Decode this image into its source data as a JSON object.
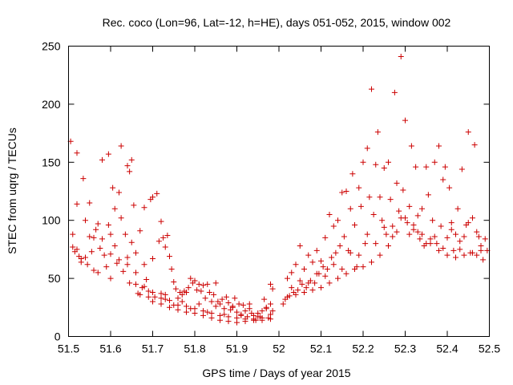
{
  "chart_data": {
    "type": "scatter",
    "title": "Rec. coco (Lon=96, Lat=-12, h=HE), days 051-052, 2015, window 002",
    "xlabel": "GPS time / Days of year 2015",
    "ylabel": "STEC from uqrg / TECUs",
    "xlim": [
      51.5,
      52.5
    ],
    "ylim": [
      0,
      250
    ],
    "xticks": [
      51.5,
      51.6,
      51.7,
      51.8,
      51.9,
      52,
      52.1,
      52.2,
      52.3,
      52.4,
      52.5
    ],
    "xtick_labels": [
      "51.5",
      "51.6",
      "51.7",
      "51.8",
      "51.9",
      "52",
      "52.1",
      "52.2",
      "52.3",
      "52.4",
      "52.5"
    ],
    "yticks": [
      0,
      50,
      100,
      150,
      200,
      250
    ],
    "ytick_labels": [
      "0",
      "50",
      "100",
      "150",
      "200",
      "250"
    ],
    "grid": false,
    "marker": "plus",
    "color": "#cc0000",
    "points": [
      [
        51.505,
        168
      ],
      [
        51.51,
        88
      ],
      [
        51.51,
        77
      ],
      [
        51.515,
        73
      ],
      [
        51.52,
        158
      ],
      [
        51.52,
        114
      ],
      [
        51.525,
        69
      ],
      [
        51.53,
        67
      ],
      [
        51.535,
        136
      ],
      [
        51.54,
        100
      ],
      [
        51.54,
        68
      ],
      [
        51.545,
        62
      ],
      [
        51.55,
        115
      ],
      [
        51.55,
        86
      ],
      [
        51.555,
        73
      ],
      [
        51.56,
        57
      ],
      [
        51.565,
        92
      ],
      [
        51.57,
        97
      ],
      [
        51.57,
        55
      ],
      [
        51.575,
        76
      ],
      [
        51.58,
        152
      ],
      [
        51.58,
        84
      ],
      [
        51.585,
        70
      ],
      [
        51.59,
        60
      ],
      [
        51.595,
        157
      ],
      [
        51.595,
        96
      ],
      [
        51.6,
        71
      ],
      [
        51.6,
        50
      ],
      [
        51.605,
        128
      ],
      [
        51.61,
        110
      ],
      [
        51.61,
        78
      ],
      [
        51.615,
        63
      ],
      [
        51.62,
        124
      ],
      [
        51.625,
        164
      ],
      [
        51.625,
        102
      ],
      [
        51.63,
        56
      ],
      [
        51.635,
        88
      ],
      [
        51.64,
        147
      ],
      [
        51.64,
        68
      ],
      [
        51.645,
        142
      ],
      [
        51.645,
        46
      ],
      [
        51.65,
        152
      ],
      [
        51.65,
        81
      ],
      [
        51.655,
        113
      ],
      [
        51.66,
        72
      ],
      [
        51.66,
        55
      ],
      [
        51.665,
        37
      ],
      [
        51.67,
        91
      ],
      [
        51.675,
        42
      ],
      [
        51.68,
        111
      ],
      [
        51.68,
        62
      ],
      [
        51.685,
        49
      ],
      [
        51.69,
        39
      ],
      [
        51.695,
        118
      ],
      [
        51.7,
        120
      ],
      [
        51.7,
        67
      ],
      [
        51.705,
        34
      ],
      [
        51.71,
        123
      ],
      [
        51.715,
        82
      ],
      [
        51.72,
        99
      ],
      [
        51.72,
        37
      ],
      [
        51.725,
        85
      ],
      [
        51.73,
        77
      ],
      [
        51.73,
        36
      ],
      [
        51.735,
        87
      ],
      [
        51.74,
        69
      ],
      [
        51.745,
        58
      ],
      [
        51.75,
        47
      ],
      [
        51.755,
        41
      ],
      [
        51.76,
        33
      ],
      [
        51.765,
        38
      ],
      [
        51.77,
        36
      ],
      [
        51.775,
        39
      ],
      [
        51.78,
        38
      ],
      [
        51.785,
        42
      ],
      [
        51.79,
        50
      ],
      [
        51.795,
        46
      ],
      [
        51.8,
        48
      ],
      [
        51.805,
        40
      ],
      [
        51.81,
        45
      ],
      [
        51.815,
        39
      ],
      [
        51.82,
        44
      ],
      [
        51.825,
        33
      ],
      [
        51.83,
        45
      ],
      [
        51.835,
        38
      ],
      [
        51.84,
        30
      ],
      [
        51.845,
        36
      ],
      [
        51.85,
        46
      ],
      [
        51.855,
        30
      ],
      [
        51.86,
        28
      ],
      [
        51.865,
        32
      ],
      [
        51.87,
        24
      ],
      [
        51.875,
        34
      ],
      [
        51.88,
        29
      ],
      [
        51.885,
        23
      ],
      [
        51.89,
        26
      ],
      [
        51.895,
        33
      ],
      [
        51.9,
        21
      ],
      [
        51.905,
        28
      ],
      [
        51.91,
        19
      ],
      [
        51.915,
        27
      ],
      [
        51.92,
        22
      ],
      [
        51.925,
        17
      ],
      [
        51.93,
        28
      ],
      [
        51.935,
        20
      ],
      [
        51.94,
        18
      ],
      [
        51.945,
        14
      ],
      [
        51.95,
        20
      ],
      [
        51.955,
        17
      ],
      [
        51.96,
        22
      ],
      [
        51.965,
        32
      ],
      [
        51.97,
        24
      ],
      [
        51.975,
        16
      ],
      [
        51.98,
        45
      ],
      [
        51.985,
        41
      ],
      [
        51.98,
        28
      ],
      [
        51.985,
        22
      ],
      [
        51.52,
        75
      ],
      [
        51.53,
        64
      ],
      [
        51.56,
        85
      ],
      [
        51.6,
        88
      ],
      [
        51.62,
        66
      ],
      [
        51.64,
        62
      ],
      [
        51.66,
        45
      ],
      [
        51.68,
        43
      ],
      [
        51.7,
        38
      ],
      [
        51.72,
        33
      ],
      [
        51.74,
        31
      ],
      [
        51.76,
        27
      ],
      [
        51.78,
        26
      ],
      [
        51.8,
        24
      ],
      [
        51.82,
        22
      ],
      [
        51.84,
        20
      ],
      [
        51.86,
        18
      ],
      [
        51.88,
        17
      ],
      [
        51.9,
        16
      ],
      [
        51.92,
        15
      ],
      [
        51.94,
        15
      ],
      [
        51.96,
        14
      ],
      [
        51.98,
        15
      ],
      [
        51.7,
        30
      ],
      [
        51.72,
        28
      ],
      [
        51.74,
        25
      ],
      [
        51.76,
        23
      ],
      [
        51.78,
        21
      ],
      [
        51.8,
        20
      ],
      [
        51.82,
        18
      ],
      [
        51.84,
        16
      ],
      [
        51.86,
        14
      ],
      [
        51.88,
        13
      ],
      [
        51.9,
        12
      ],
      [
        51.92,
        13
      ],
      [
        51.94,
        14
      ],
      [
        51.96,
        16
      ],
      [
        51.98,
        19
      ],
      [
        51.75,
        27
      ],
      [
        51.79,
        24
      ],
      [
        51.83,
        21
      ],
      [
        51.87,
        19
      ],
      [
        51.91,
        18
      ],
      [
        51.95,
        17
      ],
      [
        51.67,
        36
      ],
      [
        51.69,
        34
      ],
      [
        51.73,
        32
      ],
      [
        51.77,
        30
      ],
      [
        51.81,
        28
      ],
      [
        51.85,
        26
      ],
      [
        51.89,
        25
      ],
      [
        51.93,
        24
      ],
      [
        51.97,
        25
      ],
      [
        52.01,
        28
      ],
      [
        52.015,
        32
      ],
      [
        52.02,
        50
      ],
      [
        52.025,
        35
      ],
      [
        52.03,
        55
      ],
      [
        52.035,
        38
      ],
      [
        52.04,
        62
      ],
      [
        52.045,
        40
      ],
      [
        52.05,
        78
      ],
      [
        52.055,
        45
      ],
      [
        52.06,
        58
      ],
      [
        52.065,
        42
      ],
      [
        52.07,
        70
      ],
      [
        52.075,
        48
      ],
      [
        52.08,
        64
      ],
      [
        52.085,
        46
      ],
      [
        52.09,
        74
      ],
      [
        52.095,
        54
      ],
      [
        52.1,
        65
      ],
      [
        52.105,
        60
      ],
      [
        52.11,
        85
      ],
      [
        52.115,
        58
      ],
      [
        52.12,
        105
      ],
      [
        52.125,
        68
      ],
      [
        52.13,
        95
      ],
      [
        52.135,
        72
      ],
      [
        52.14,
        100
      ],
      [
        52.145,
        78
      ],
      [
        52.15,
        124
      ],
      [
        52.155,
        86
      ],
      [
        52.16,
        125
      ],
      [
        52.165,
        74
      ],
      [
        52.17,
        110
      ],
      [
        52.175,
        140
      ],
      [
        52.18,
        96
      ],
      [
        52.185,
        60
      ],
      [
        52.19,
        128
      ],
      [
        52.195,
        112
      ],
      [
        52.2,
        150
      ],
      [
        52.205,
        80
      ],
      [
        52.21,
        162
      ],
      [
        52.215,
        120
      ],
      [
        52.22,
        213
      ],
      [
        52.225,
        105
      ],
      [
        52.23,
        148
      ],
      [
        52.235,
        176
      ],
      [
        52.24,
        120
      ],
      [
        52.245,
        100
      ],
      [
        52.25,
        145
      ],
      [
        52.255,
        88
      ],
      [
        52.26,
        150
      ],
      [
        52.265,
        118
      ],
      [
        52.27,
        95
      ],
      [
        52.275,
        210
      ],
      [
        52.28,
        132
      ],
      [
        52.285,
        108
      ],
      [
        52.29,
        241
      ],
      [
        52.295,
        126
      ],
      [
        52.3,
        186
      ],
      [
        52.305,
        98
      ],
      [
        52.31,
        112
      ],
      [
        52.315,
        164
      ],
      [
        52.32,
        92
      ],
      [
        52.325,
        146
      ],
      [
        52.33,
        104
      ],
      [
        52.335,
        84
      ],
      [
        52.34,
        110
      ],
      [
        52.345,
        78
      ],
      [
        52.35,
        146
      ],
      [
        52.355,
        122
      ],
      [
        52.36,
        84
      ],
      [
        52.365,
        100
      ],
      [
        52.37,
        150
      ],
      [
        52.375,
        80
      ],
      [
        52.38,
        164
      ],
      [
        52.385,
        95
      ],
      [
        52.39,
        135
      ],
      [
        52.395,
        146
      ],
      [
        52.4,
        85
      ],
      [
        52.405,
        128
      ],
      [
        52.41,
        98
      ],
      [
        52.415,
        74
      ],
      [
        52.42,
        88
      ],
      [
        52.425,
        110
      ],
      [
        52.43,
        75
      ],
      [
        52.435,
        144
      ],
      [
        52.44,
        86
      ],
      [
        52.445,
        96
      ],
      [
        52.45,
        176
      ],
      [
        52.455,
        72
      ],
      [
        52.46,
        102
      ],
      [
        52.465,
        165
      ],
      [
        52.47,
        70
      ],
      [
        52.475,
        86
      ],
      [
        52.48,
        78
      ],
      [
        52.485,
        66
      ],
      [
        52.49,
        84
      ],
      [
        52.495,
        74
      ],
      [
        52.02,
        34
      ],
      [
        52.04,
        36
      ],
      [
        52.06,
        38
      ],
      [
        52.08,
        40
      ],
      [
        52.1,
        42
      ],
      [
        52.12,
        46
      ],
      [
        52.14,
        50
      ],
      [
        52.16,
        54
      ],
      [
        52.18,
        58
      ],
      [
        52.2,
        60
      ],
      [
        52.22,
        64
      ],
      [
        52.24,
        70
      ],
      [
        52.26,
        78
      ],
      [
        52.28,
        90
      ],
      [
        52.3,
        102
      ],
      [
        52.32,
        96
      ],
      [
        52.34,
        88
      ],
      [
        52.36,
        80
      ],
      [
        52.38,
        74
      ],
      [
        52.4,
        70
      ],
      [
        52.42,
        68
      ],
      [
        52.44,
        70
      ],
      [
        52.46,
        72
      ],
      [
        52.48,
        74
      ],
      [
        52.03,
        42
      ],
      [
        52.07,
        46
      ],
      [
        52.11,
        52
      ],
      [
        52.15,
        58
      ],
      [
        52.19,
        70
      ],
      [
        52.23,
        80
      ],
      [
        52.27,
        86
      ],
      [
        52.31,
        88
      ],
      [
        52.35,
        80
      ],
      [
        52.39,
        76
      ],
      [
        52.43,
        82
      ],
      [
        52.47,
        90
      ],
      [
        52.05,
        48
      ],
      [
        52.09,
        54
      ],
      [
        52.13,
        62
      ],
      [
        52.17,
        72
      ],
      [
        52.21,
        88
      ],
      [
        52.25,
        94
      ],
      [
        52.29,
        102
      ],
      [
        52.33,
        90
      ],
      [
        52.37,
        86
      ],
      [
        52.41,
        92
      ],
      [
        52.45,
        98
      ]
    ]
  }
}
